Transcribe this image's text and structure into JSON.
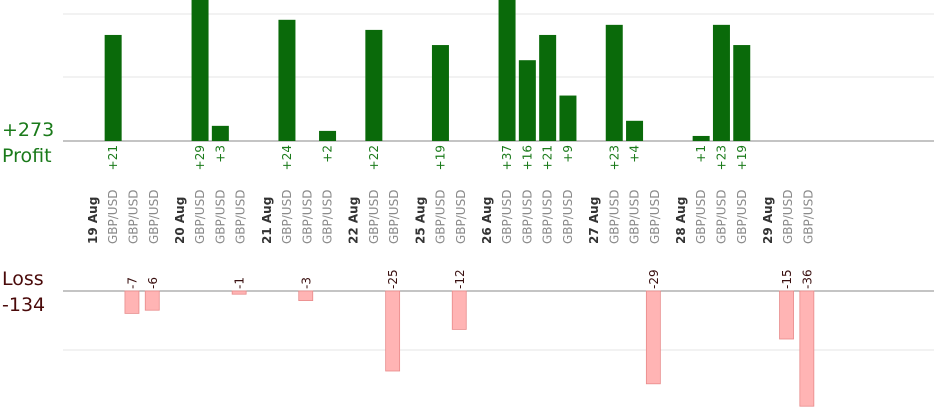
{
  "summary": {
    "profit_total": "+273",
    "profit_label": "Profit",
    "loss_label": "Loss",
    "loss_total": "-134"
  },
  "colors": {
    "profit_bar": "#0a6a0a",
    "loss_bar": "#ffb4b4",
    "profit_text": "#1a7a1a",
    "loss_text": "#3a1010",
    "day_text": "#333333",
    "symbol_text": "#8a8a8a"
  },
  "chart_data": {
    "type": "bar",
    "days": [
      {
        "label": "19 Aug",
        "trades": [
          {
            "symbol": "GBP/USD",
            "value": 21
          },
          {
            "symbol": "GBP/USD",
            "value": -7
          },
          {
            "symbol": "GBP/USD",
            "value": -6
          }
        ]
      },
      {
        "label": "20 Aug",
        "trades": [
          {
            "symbol": "GBP/USD",
            "value": 29
          },
          {
            "symbol": "GBP/USD",
            "value": 3
          },
          {
            "symbol": "GBP/USD",
            "value": -1
          }
        ]
      },
      {
        "label": "21 Aug",
        "trades": [
          {
            "symbol": "GBP/USD",
            "value": 24
          },
          {
            "symbol": "GBP/USD",
            "value": -3
          },
          {
            "symbol": "GBP/USD",
            "value": 2
          }
        ]
      },
      {
        "label": "22 Aug",
        "trades": [
          {
            "symbol": "GBP/USD",
            "value": 22
          },
          {
            "symbol": "GBP/USD",
            "value": -25
          }
        ]
      },
      {
        "label": "25 Aug",
        "trades": [
          {
            "symbol": "GBP/USD",
            "value": 19
          },
          {
            "symbol": "GBP/USD",
            "value": -12
          }
        ]
      },
      {
        "label": "26 Aug",
        "trades": [
          {
            "symbol": "GBP/USD",
            "value": 37
          },
          {
            "symbol": "GBP/USD",
            "value": 16
          },
          {
            "symbol": "GBP/USD",
            "value": 21
          },
          {
            "symbol": "GBP/USD",
            "value": 9
          }
        ]
      },
      {
        "label": "27 Aug",
        "trades": [
          {
            "symbol": "GBP/USD",
            "value": 23
          },
          {
            "symbol": "GBP/USD",
            "value": 4
          },
          {
            "symbol": "GBP/USD",
            "value": -29
          }
        ]
      },
      {
        "label": "28 Aug",
        "trades": [
          {
            "symbol": "GBP/USD",
            "value": 1
          },
          {
            "symbol": "GBP/USD",
            "value": 23
          },
          {
            "symbol": "GBP/USD",
            "value": 19
          }
        ]
      },
      {
        "label": "29 Aug",
        "trades": [
          {
            "symbol": "GBP/USD",
            "value": -15
          },
          {
            "symbol": "GBP/USD",
            "value": -36
          }
        ]
      }
    ]
  }
}
